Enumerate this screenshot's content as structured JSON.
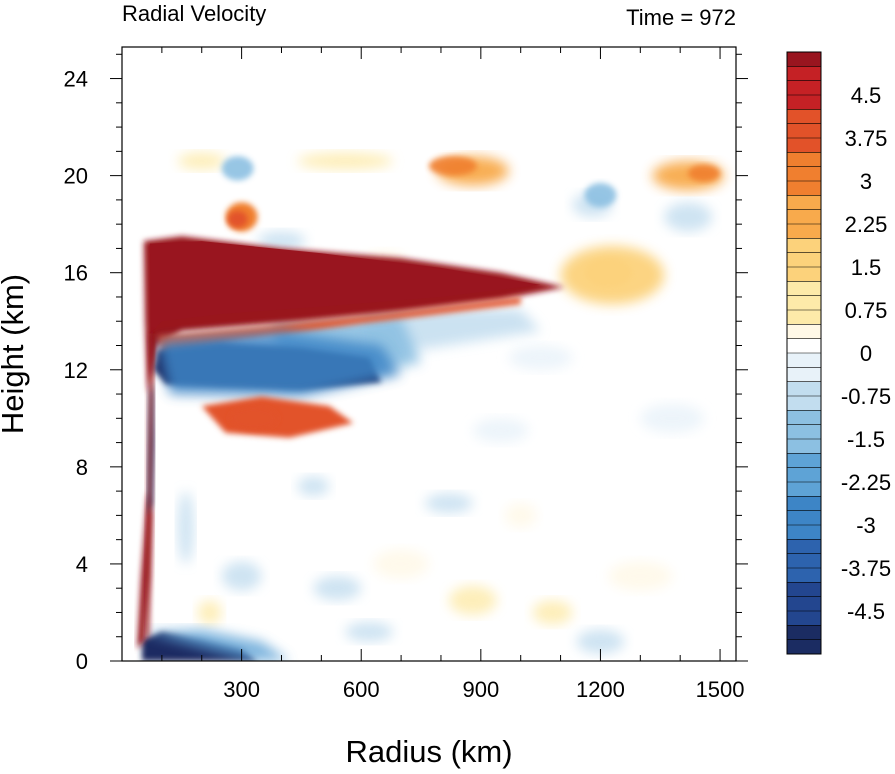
{
  "chart_data": {
    "type": "heatmap",
    "title": "Radial Velocity",
    "subtitle": "Time = 972",
    "xlabel": "Radius (km)",
    "ylabel": "Height (km)",
    "xlim": [
      0,
      1540
    ],
    "ylim": [
      0,
      25.3
    ],
    "x_ticks": [
      300,
      600,
      900,
      1200,
      1500
    ],
    "y_ticks": [
      0,
      4,
      8,
      12,
      16,
      20,
      24
    ],
    "grid": false,
    "colorbar": {
      "min": -5.25,
      "max": 5.25,
      "step": 0.25,
      "tick_labels": [
        "4.5",
        "3.75",
        "3",
        "2.25",
        "1.5",
        "0.75",
        "0",
        "-0.75",
        "-1.5",
        "-2.25",
        "-3",
        "-3.75",
        "-4.5"
      ],
      "tick_values": [
        4.5,
        3.75,
        3,
        2.25,
        1.5,
        0.75,
        0,
        -0.75,
        -1.5,
        -2.25,
        -3,
        -3.75,
        -4.5
      ],
      "color_stops": [
        {
          "value": -5.25,
          "color": "#1b2c62"
        },
        {
          "value": -4.5,
          "color": "#23468f"
        },
        {
          "value": -3.75,
          "color": "#2d63ae"
        },
        {
          "value": -3.0,
          "color": "#3d85c6"
        },
        {
          "value": -2.25,
          "color": "#5ea3d6"
        },
        {
          "value": -1.5,
          "color": "#8cc0e2"
        },
        {
          "value": -0.75,
          "color": "#c2ddef"
        },
        {
          "value": -0.25,
          "color": "#e8f2f9"
        },
        {
          "value": 0.0,
          "color": "#ffffff"
        },
        {
          "value": 0.25,
          "color": "#fff8e6"
        },
        {
          "value": 0.75,
          "color": "#fdeaa9"
        },
        {
          "value": 1.5,
          "color": "#fcd27b"
        },
        {
          "value": 2.25,
          "color": "#f8aa4c"
        },
        {
          "value": 3.0,
          "color": "#f07f2f"
        },
        {
          "value": 3.75,
          "color": "#e25229"
        },
        {
          "value": 4.5,
          "color": "#c52125"
        },
        {
          "value": 5.25,
          "color": "#99151f"
        }
      ]
    },
    "features": [
      {
        "name": "upper outflow",
        "r_range": [
          55,
          1110
        ],
        "z_center": 15.6,
        "max_velocity": 5.25
      },
      {
        "name": "inflow below outflow",
        "r_range": [
          90,
          650
        ],
        "z_center": 12.2,
        "max_velocity": -5.25
      },
      {
        "name": "mid-level outflow",
        "r_range": [
          200,
          580
        ],
        "z_center": 9.8,
        "max_velocity": 3.5
      },
      {
        "name": "boundary layer inflow",
        "r_range": [
          55,
          330
        ],
        "z_center": 0.4,
        "max_velocity": -5.25
      },
      {
        "name": "eyewall outflow",
        "r_range": [
          45,
          70
        ],
        "z_center": 2.0,
        "max_velocity": 5.25
      },
      {
        "name": "eyewall inflow",
        "r_range": [
          60,
          80
        ],
        "z_center": 7.0,
        "max_velocity": -5.25
      },
      {
        "name": "upper-level outflow patches",
        "r_range": [
          250,
          1480
        ],
        "z_center": 20.2,
        "max_velocity": 2.5
      },
      {
        "name": "outer outflow",
        "r_range": [
          1100,
          1350
        ],
        "z_center": 15.8,
        "max_velocity": 1.8
      }
    ]
  }
}
